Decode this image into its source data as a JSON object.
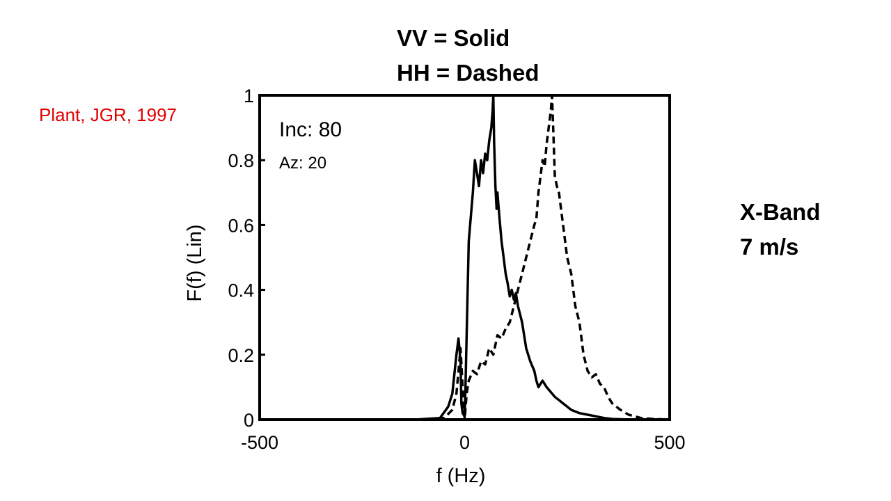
{
  "legend": {
    "vv": "VV = Solid",
    "hh": "HH = Dashed"
  },
  "citation": "Plant, JGR, 1997",
  "citation_color": "#e00000",
  "side_note": {
    "band": "X-Band",
    "wind": "7 m/s"
  },
  "chart_data": {
    "type": "line",
    "xlabel": "f (Hz)",
    "ylabel": "F(f) (Lin)",
    "xlim": [
      -500,
      500
    ],
    "ylim": [
      0,
      1
    ],
    "xticks": [
      "-500",
      "0",
      "500"
    ],
    "yticks": [
      "0",
      "0.2",
      "0.4",
      "0.6",
      "0.8",
      "1"
    ],
    "annotations": {
      "inc": "Inc: 80",
      "az": "Az: 20"
    },
    "grid": false,
    "series": [
      {
        "style": "solid",
        "x": [
          -500,
          -120,
          -60,
          -40,
          -30,
          -20,
          -15,
          -10,
          -8,
          -5,
          0,
          2,
          10,
          20,
          25,
          30,
          35,
          40,
          45,
          50,
          55,
          60,
          65,
          68,
          70,
          72,
          75,
          78,
          80,
          85,
          90,
          95,
          100,
          105,
          110,
          115,
          120,
          125,
          130,
          140,
          150,
          160,
          170,
          175,
          180,
          185,
          190,
          200,
          210,
          220,
          230,
          240,
          250,
          260,
          270,
          280,
          300,
          320,
          340,
          360,
          380,
          400,
          500
        ],
        "y": [
          0,
          0,
          0.005,
          0.04,
          0.08,
          0.2,
          0.25,
          0.18,
          0.05,
          0.02,
          0.01,
          0.1,
          0.55,
          0.7,
          0.8,
          0.76,
          0.72,
          0.8,
          0.76,
          0.82,
          0.8,
          0.86,
          0.9,
          0.95,
          1.0,
          0.85,
          0.72,
          0.65,
          0.7,
          0.62,
          0.55,
          0.5,
          0.45,
          0.42,
          0.38,
          0.4,
          0.37,
          0.39,
          0.35,
          0.3,
          0.22,
          0.18,
          0.15,
          0.12,
          0.1,
          0.11,
          0.12,
          0.1,
          0.085,
          0.07,
          0.06,
          0.05,
          0.04,
          0.03,
          0.025,
          0.02,
          0.015,
          0.01,
          0.005,
          0.002,
          0.001,
          0,
          0
        ]
      },
      {
        "style": "dashed",
        "x": [
          -500,
          -100,
          -50,
          -30,
          -20,
          -15,
          -10,
          -5,
          0,
          5,
          10,
          20,
          30,
          40,
          50,
          60,
          70,
          80,
          90,
          100,
          110,
          120,
          130,
          140,
          150,
          160,
          170,
          175,
          180,
          185,
          190,
          195,
          200,
          205,
          210,
          213,
          216,
          220,
          225,
          230,
          240,
          250,
          260,
          270,
          280,
          290,
          300,
          310,
          320,
          330,
          340,
          350,
          360,
          370,
          380,
          400,
          430,
          460,
          500
        ],
        "y": [
          0,
          0,
          0.005,
          0.03,
          0.08,
          0.15,
          0.22,
          0.1,
          0.0,
          0.08,
          0.12,
          0.15,
          0.14,
          0.18,
          0.17,
          0.22,
          0.2,
          0.26,
          0.25,
          0.28,
          0.3,
          0.35,
          0.4,
          0.45,
          0.5,
          0.55,
          0.6,
          0.62,
          0.7,
          0.75,
          0.8,
          0.78,
          0.85,
          0.9,
          0.95,
          1.0,
          0.9,
          0.75,
          0.72,
          0.7,
          0.6,
          0.5,
          0.45,
          0.35,
          0.3,
          0.2,
          0.15,
          0.13,
          0.14,
          0.11,
          0.1,
          0.07,
          0.05,
          0.04,
          0.03,
          0.015,
          0.005,
          0.002,
          0
        ]
      }
    ]
  }
}
